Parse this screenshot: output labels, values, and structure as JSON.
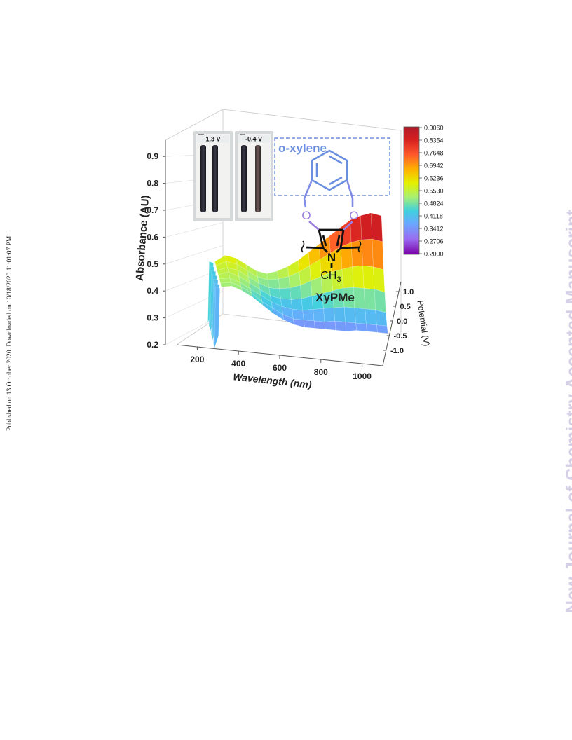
{
  "page": {
    "published_line": "Published on 13 October 2020. Downloaded on 10/18/2020 11:01:07 PM.",
    "watermark": "New Journal of Chemistry Accepted Manuscript"
  },
  "inset": {
    "panels": [
      {
        "label": "1.3 V"
      },
      {
        "label": "-0.4 V"
      }
    ]
  },
  "structure": {
    "substituent_label": "o-xylene",
    "oxygen_label": "O",
    "nitrogen_label": "N",
    "methyl_label": "CH",
    "methyl_subscript": "3",
    "compound_name": "XyPMe"
  },
  "colors": {
    "structure_blue": "#6b8fe0",
    "oxygen_purple": "#9b7fe0",
    "colormap": [
      "#7a00a8",
      "#9a6cf0",
      "#6aa8ff",
      "#3fd0e0",
      "#a8f070",
      "#e4f000",
      "#ffb000",
      "#ff5a2a",
      "#d62020",
      "#b01a2a"
    ]
  },
  "chart_data": {
    "type": "surface",
    "xlabel": "Wavelength (nm)",
    "ylabel": "Absorbance (AU)",
    "zlabel": "Potential (V)",
    "x_ticks": [
      200,
      400,
      600,
      800,
      1000
    ],
    "y_ticks": [
      0.2,
      0.3,
      0.4,
      0.5,
      0.6,
      0.7,
      0.8,
      0.9
    ],
    "z_ticks": [
      1.0,
      0.5,
      0.0,
      -0.5,
      -1.0
    ],
    "x_tick_labels": [
      "200",
      "400",
      "600",
      "800",
      "1000"
    ],
    "y_tick_labels": [
      "0.2",
      "0.3",
      "0.4",
      "0.5",
      "0.6",
      "0.7",
      "0.8",
      "0.9"
    ],
    "z_tick_labels": [
      "1.0",
      "0.5",
      "0.0",
      "-0.5",
      "-1.0"
    ],
    "xlim": [
      100,
      1100
    ],
    "ylim": [
      0.2,
      0.95
    ],
    "zlim": [
      -1.2,
      1.2
    ],
    "colorbar": {
      "labels": [
        "0.9060",
        "0.8354",
        "0.7648",
        "0.6942",
        "0.6236",
        "0.5530",
        "0.4824",
        "0.4118",
        "0.3412",
        "0.2706",
        "0.2000"
      ]
    },
    "surface": {
      "wavelengths": [
        300,
        350,
        400,
        450,
        500,
        550,
        600,
        650,
        700,
        750,
        800,
        850,
        900,
        950,
        1000,
        1050,
        1100
      ],
      "potentials": [
        1.3,
        0.9,
        0.5,
        0.1,
        -0.3,
        -0.7,
        -1.0
      ],
      "absorbance": [
        [
          0.56,
          0.6,
          0.59,
          0.56,
          0.53,
          0.52,
          0.54,
          0.57,
          0.61,
          0.66,
          0.71,
          0.76,
          0.81,
          0.86,
          0.89,
          0.91,
          0.9
        ],
        [
          0.55,
          0.58,
          0.57,
          0.54,
          0.51,
          0.5,
          0.51,
          0.53,
          0.56,
          0.6,
          0.64,
          0.68,
          0.72,
          0.75,
          0.77,
          0.78,
          0.77
        ],
        [
          0.54,
          0.56,
          0.55,
          0.52,
          0.49,
          0.47,
          0.47,
          0.48,
          0.5,
          0.53,
          0.56,
          0.59,
          0.61,
          0.63,
          0.64,
          0.64,
          0.63
        ],
        [
          0.53,
          0.55,
          0.53,
          0.5,
          0.47,
          0.44,
          0.43,
          0.43,
          0.44,
          0.46,
          0.48,
          0.5,
          0.52,
          0.53,
          0.53,
          0.53,
          0.52
        ],
        [
          0.52,
          0.53,
          0.51,
          0.48,
          0.45,
          0.42,
          0.4,
          0.39,
          0.39,
          0.4,
          0.41,
          0.42,
          0.43,
          0.43,
          0.43,
          0.43,
          0.42
        ],
        [
          0.51,
          0.52,
          0.5,
          0.47,
          0.43,
          0.4,
          0.37,
          0.35,
          0.35,
          0.35,
          0.35,
          0.36,
          0.36,
          0.36,
          0.36,
          0.36,
          0.36
        ],
        [
          0.5,
          0.51,
          0.49,
          0.46,
          0.42,
          0.38,
          0.35,
          0.33,
          0.32,
          0.32,
          0.32,
          0.32,
          0.32,
          0.33,
          0.33,
          0.33,
          0.33
        ]
      ]
    }
  }
}
